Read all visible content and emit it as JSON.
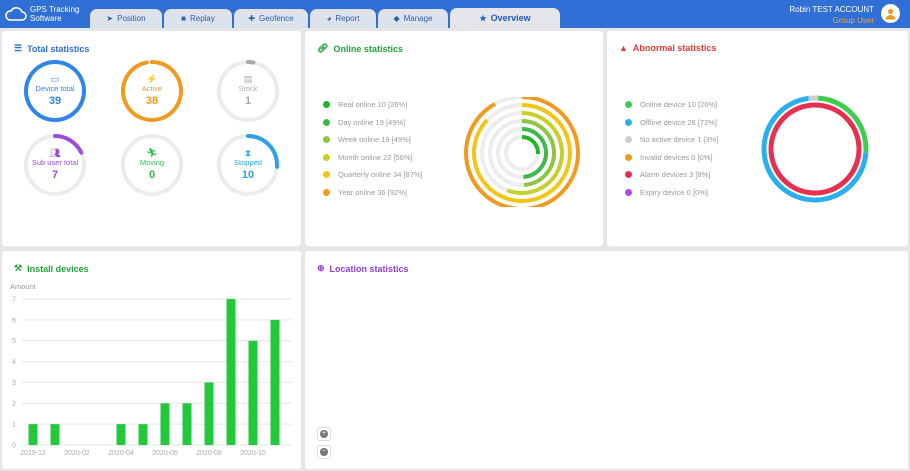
{
  "app": {
    "title_line1": "GPS Tracking",
    "title_line2": "Software"
  },
  "tabs": [
    {
      "label": "Position",
      "icon": "navigation-arrow-icon"
    },
    {
      "label": "Replay",
      "icon": "video-camera-icon"
    },
    {
      "label": "Geofence",
      "icon": "puzzle-icon"
    },
    {
      "label": "Report",
      "icon": "pie-chart-icon"
    },
    {
      "label": "Manage",
      "icon": "cube-icon"
    },
    {
      "label": "Overview",
      "icon": "star-icon"
    }
  ],
  "user": {
    "name": "Robin TEST ACCOUNT",
    "role": "Group User"
  },
  "total_statistics": {
    "title": "Total statistics",
    "items": [
      {
        "label": "Device total",
        "value": "39",
        "color": "#2f86e6",
        "progress": 1.0
      },
      {
        "label": "Active",
        "value": "38",
        "color": "#f29a1f",
        "progress": 0.97
      },
      {
        "label": "Stock",
        "value": "1",
        "color": "#aaaaaa",
        "progress": 0.03
      },
      {
        "label": "Sub user total",
        "value": "7",
        "color": "#9a4ddb",
        "progress": 0.18
      },
      {
        "label": "Moving",
        "value": "0",
        "color": "#2cbf4a",
        "progress": 0
      },
      {
        "label": "Stopped",
        "value": "10",
        "color": "#2aa3e8",
        "progress": 0.26
      }
    ]
  },
  "online_statistics": {
    "title": "Online statistics",
    "items": [
      {
        "label": "Real online 10 [26%]",
        "color": "#1fb52d",
        "fraction": 0.26
      },
      {
        "label": "Day online 19 [49%]",
        "color": "#3fb84a",
        "fraction": 0.49
      },
      {
        "label": "Week online 19 [49%]",
        "color": "#8dc63f",
        "fraction": 0.49
      },
      {
        "label": "Month online 22 [56%]",
        "color": "#c5d02a",
        "fraction": 0.56
      },
      {
        "label": "Quarterly online 34 [87%]",
        "color": "#f2c618",
        "fraction": 0.87
      },
      {
        "label": "Year online 36 [92%]",
        "color": "#f29a1f",
        "fraction": 0.92
      }
    ]
  },
  "abnormal_statistics": {
    "title": "Abnormal statistics",
    "items": [
      {
        "label": "Online device 10 [26%]",
        "color": "#3fcc4f",
        "fraction": 0.26
      },
      {
        "label": "Offline device 28 [72%]",
        "color": "#29b0ec",
        "fraction": 0.72
      },
      {
        "label": "No active device 1 [3%]",
        "color": "#cccccc",
        "fraction": 0.03
      },
      {
        "label": "Invalid devices 0 [0%]",
        "color": "#f29a1f",
        "fraction": 0
      },
      {
        "label": "Alarm devices 3 [8%]",
        "color": "#e8304e",
        "fraction": 0.08
      },
      {
        "label": "Expiry device 0 [0%]",
        "color": "#b14be0",
        "fraction": 0
      }
    ]
  },
  "install_devices": {
    "title": "Install devices",
    "chart_data": {
      "type": "bar",
      "ylabel": "Amount",
      "ylim": [
        0,
        7
      ],
      "yticks": [
        "0",
        "1",
        "2",
        "3",
        "4",
        "5",
        "6",
        "7"
      ],
      "categories": [
        "2019-12",
        "2020-01",
        "2020-02",
        "2020-03",
        "2020-04",
        "2020-05",
        "2020-06",
        "2020-07",
        "2020-08",
        "2020-09",
        "2020-10",
        "2020-11"
      ],
      "xtick_labels": [
        "2019-12",
        "",
        "2020-02",
        "",
        "2020-04",
        "",
        "2020-06",
        "",
        "2020-08",
        "",
        "2020-10",
        ""
      ],
      "values": [
        1,
        1,
        0,
        0,
        1,
        1,
        2,
        2,
        3,
        7,
        5,
        6
      ],
      "color": "#22c93a",
      "grid": true
    }
  },
  "location_statistics": {
    "title": "Location statistics",
    "zoom_in": "+",
    "zoom_out": "−"
  }
}
